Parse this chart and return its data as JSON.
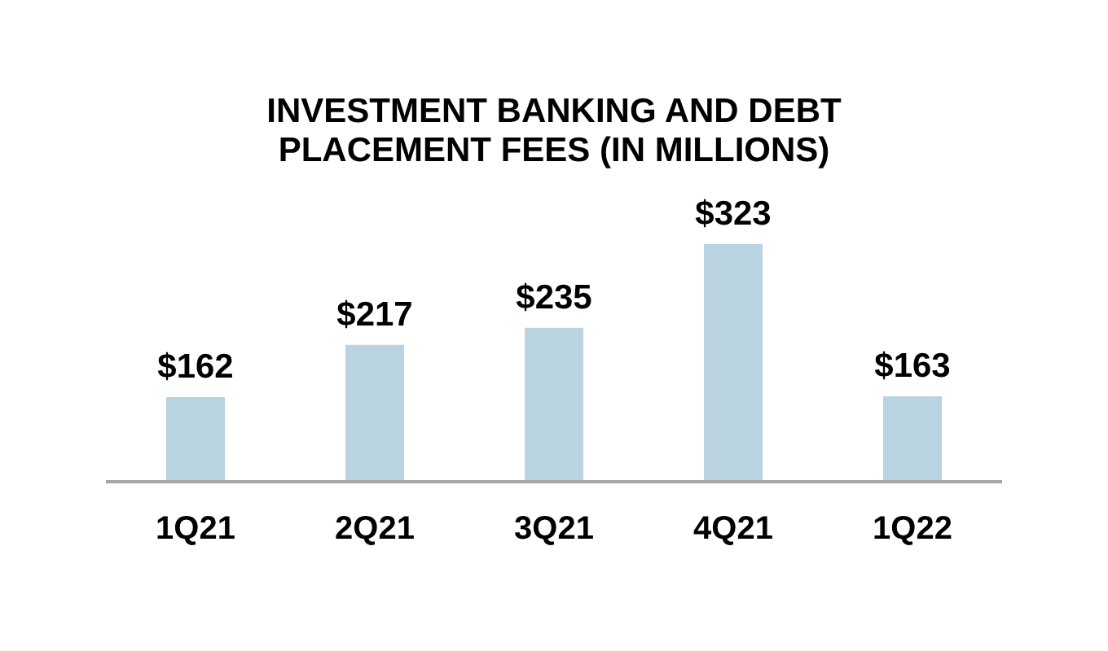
{
  "chart_data": {
    "type": "bar",
    "title": "INVESTMENT BANKING AND DEBT PLACEMENT FEES (IN MILLIONS)",
    "categories": [
      "1Q21",
      "2Q21",
      "3Q21",
      "4Q21",
      "1Q22"
    ],
    "values": [
      162,
      217,
      235,
      323,
      163
    ],
    "color": "#b9d3e0",
    "value_labels": [
      "$162",
      "$217",
      "$235",
      "$323",
      "$163"
    ],
    "ylim": [
      73,
      323
    ]
  }
}
